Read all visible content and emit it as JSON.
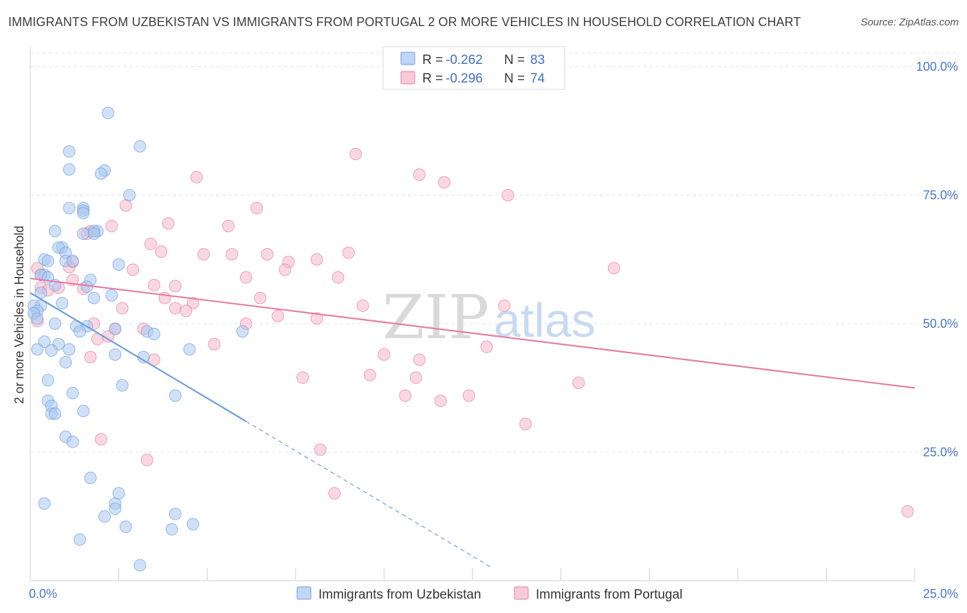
{
  "header": {
    "title": "IMMIGRANTS FROM UZBEKISTAN VS IMMIGRANTS FROM PORTUGAL 2 OR MORE VEHICLES IN HOUSEHOLD CORRELATION CHART",
    "source": "Source: ZipAtlas.com"
  },
  "watermark": {
    "zip": "ZIP",
    "atlas": "atlas"
  },
  "legend": {
    "rows": [
      {
        "r_label": "R = ",
        "r_value": "-0.262",
        "n_label": "N = ",
        "n_value": "83",
        "color": "#a9c8f0"
      },
      {
        "r_label": "R = ",
        "r_value": "-0.296",
        "n_label": "N = ",
        "n_value": "74",
        "color": "#f6b8cb"
      }
    ]
  },
  "chart_data": {
    "type": "scatter",
    "title": "IMMIGRANTS FROM UZBEKISTAN VS IMMIGRANTS FROM PORTUGAL 2 OR MORE VEHICLES IN HOUSEHOLD CORRELATION CHART",
    "xlabel": "",
    "ylabel": "2 or more Vehicles in Household",
    "xlim": [
      0,
      25
    ],
    "ylim": [
      0,
      100
    ],
    "x_tick_labels": [
      "0.0%",
      "25.0%"
    ],
    "y_ticks": [
      25,
      50,
      75,
      100
    ],
    "y_tick_labels": [
      "25.0%",
      "50.0%",
      "75.0%",
      "100.0%"
    ],
    "grid": true,
    "legend_placement": "top-center",
    "series": [
      {
        "name": "Immigrants from Uzbekistan",
        "color": "#6d9ee0",
        "fill": "#a9c8f0",
        "r": -0.262,
        "n": 83,
        "trend": {
          "x0": 0.0,
          "y0": 56.0,
          "x1": 6.1,
          "y1": 31.0,
          "dash_to_x": 13.0
        },
        "points": [
          [
            2.2,
            91.0
          ],
          [
            3.1,
            84.5
          ],
          [
            1.1,
            83.5
          ],
          [
            1.1,
            80.0
          ],
          [
            2.1,
            79.8
          ],
          [
            2.0,
            79.2
          ],
          [
            2.8,
            75.0
          ],
          [
            1.5,
            72.5
          ],
          [
            1.1,
            72.5
          ],
          [
            1.5,
            72.0
          ],
          [
            1.5,
            71.5
          ],
          [
            0.7,
            68.0
          ],
          [
            1.9,
            68.0
          ],
          [
            1.8,
            68.0
          ],
          [
            1.8,
            67.5
          ],
          [
            1.5,
            67.5
          ],
          [
            0.9,
            64.8
          ],
          [
            0.8,
            64.8
          ],
          [
            1.0,
            63.8
          ],
          [
            0.4,
            62.5
          ],
          [
            0.5,
            62.2
          ],
          [
            1.0,
            62.2
          ],
          [
            1.2,
            62.2
          ],
          [
            2.5,
            61.5
          ],
          [
            0.4,
            59.5
          ],
          [
            0.3,
            59.5
          ],
          [
            0.5,
            59.0
          ],
          [
            1.7,
            58.5
          ],
          [
            0.7,
            57.5
          ],
          [
            1.6,
            57.2
          ],
          [
            0.3,
            56.0
          ],
          [
            1.8,
            55.0
          ],
          [
            2.3,
            55.5
          ],
          [
            0.9,
            54.0
          ],
          [
            0.3,
            53.5
          ],
          [
            0.1,
            53.5
          ],
          [
            0.2,
            52.5
          ],
          [
            0.1,
            52.0
          ],
          [
            0.2,
            51.0
          ],
          [
            0.7,
            50.0
          ],
          [
            1.6,
            49.5
          ],
          [
            1.3,
            49.5
          ],
          [
            1.4,
            48.5
          ],
          [
            2.4,
            49.0
          ],
          [
            3.3,
            48.5
          ],
          [
            3.5,
            48.0
          ],
          [
            6.0,
            48.5
          ],
          [
            0.4,
            46.5
          ],
          [
            0.8,
            46.0
          ],
          [
            1.1,
            45.0
          ],
          [
            0.2,
            45.0
          ],
          [
            0.6,
            44.8
          ],
          [
            4.5,
            45.0
          ],
          [
            2.4,
            44.0
          ],
          [
            3.2,
            43.5
          ],
          [
            1.0,
            42.5
          ],
          [
            0.5,
            39.0
          ],
          [
            2.6,
            38.0
          ],
          [
            1.2,
            36.5
          ],
          [
            4.1,
            36.0
          ],
          [
            0.5,
            35.0
          ],
          [
            0.6,
            34.0
          ],
          [
            0.6,
            32.5
          ],
          [
            0.7,
            32.5
          ],
          [
            1.5,
            33.0
          ],
          [
            1.0,
            28.0
          ],
          [
            1.2,
            27.0
          ],
          [
            1.7,
            20.0
          ],
          [
            0.4,
            15.0
          ],
          [
            2.4,
            15.0
          ],
          [
            2.5,
            17.0
          ],
          [
            2.4,
            14.0
          ],
          [
            2.1,
            12.5
          ],
          [
            4.1,
            13.0
          ],
          [
            2.7,
            10.5
          ],
          [
            4.0,
            10.0
          ],
          [
            4.6,
            11.0
          ],
          [
            1.4,
            8.0
          ],
          [
            3.1,
            3.0
          ]
        ]
      },
      {
        "name": "Immigrants from Portugal",
        "color": "#e57ea4",
        "fill": "#f6b8cb",
        "r": -0.296,
        "n": 74,
        "trend": {
          "x0": 0.0,
          "y0": 58.8,
          "x1": 25.0,
          "y1": 37.5
        },
        "points": [
          [
            9.2,
            83.0
          ],
          [
            11.0,
            79.0
          ],
          [
            11.7,
            77.5
          ],
          [
            13.5,
            75.0
          ],
          [
            4.7,
            78.5
          ],
          [
            2.7,
            73.0
          ],
          [
            6.4,
            72.5
          ],
          [
            3.9,
            69.5
          ],
          [
            2.3,
            69.0
          ],
          [
            5.6,
            69.0
          ],
          [
            1.7,
            68.0
          ],
          [
            1.6,
            67.5
          ],
          [
            3.4,
            65.5
          ],
          [
            3.7,
            64.0
          ],
          [
            4.9,
            63.5
          ],
          [
            5.7,
            63.5
          ],
          [
            6.7,
            63.5
          ],
          [
            9.0,
            63.8
          ],
          [
            7.3,
            62.0
          ],
          [
            8.1,
            62.5
          ],
          [
            1.2,
            62.0
          ],
          [
            1.1,
            61.0
          ],
          [
            2.9,
            60.5
          ],
          [
            7.2,
            60.5
          ],
          [
            0.2,
            60.8
          ],
          [
            16.5,
            60.8
          ],
          [
            6.1,
            59.0
          ],
          [
            8.7,
            59.0
          ],
          [
            0.3,
            59.5
          ],
          [
            1.2,
            58.5
          ],
          [
            3.5,
            57.5
          ],
          [
            4.1,
            57.3
          ],
          [
            0.3,
            57.0
          ],
          [
            0.8,
            57.0
          ],
          [
            1.5,
            56.8
          ],
          [
            0.5,
            56.5
          ],
          [
            3.8,
            55.0
          ],
          [
            6.5,
            55.0
          ],
          [
            4.6,
            54.0
          ],
          [
            2.6,
            53.0
          ],
          [
            4.1,
            53.0
          ],
          [
            9.4,
            53.5
          ],
          [
            13.4,
            53.5
          ],
          [
            4.4,
            52.5
          ],
          [
            7.0,
            51.5
          ],
          [
            8.1,
            51.0
          ],
          [
            0.2,
            50.5
          ],
          [
            1.8,
            50.0
          ],
          [
            6.1,
            50.0
          ],
          [
            2.4,
            49.0
          ],
          [
            3.2,
            49.0
          ],
          [
            1.9,
            47.0
          ],
          [
            2.2,
            47.5
          ],
          [
            5.2,
            46.0
          ],
          [
            12.9,
            45.5
          ],
          [
            10.0,
            44.0
          ],
          [
            1.7,
            43.5
          ],
          [
            3.5,
            43.0
          ],
          [
            11.0,
            43.0
          ],
          [
            7.7,
            39.5
          ],
          [
            9.6,
            40.0
          ],
          [
            10.9,
            39.5
          ],
          [
            15.5,
            38.5
          ],
          [
            10.6,
            36.0
          ],
          [
            12.4,
            36.0
          ],
          [
            11.6,
            35.0
          ],
          [
            14.0,
            30.5
          ],
          [
            2.0,
            27.5
          ],
          [
            8.2,
            25.5
          ],
          [
            3.3,
            23.5
          ],
          [
            8.6,
            17.0
          ],
          [
            24.8,
            13.5
          ]
        ]
      }
    ]
  }
}
